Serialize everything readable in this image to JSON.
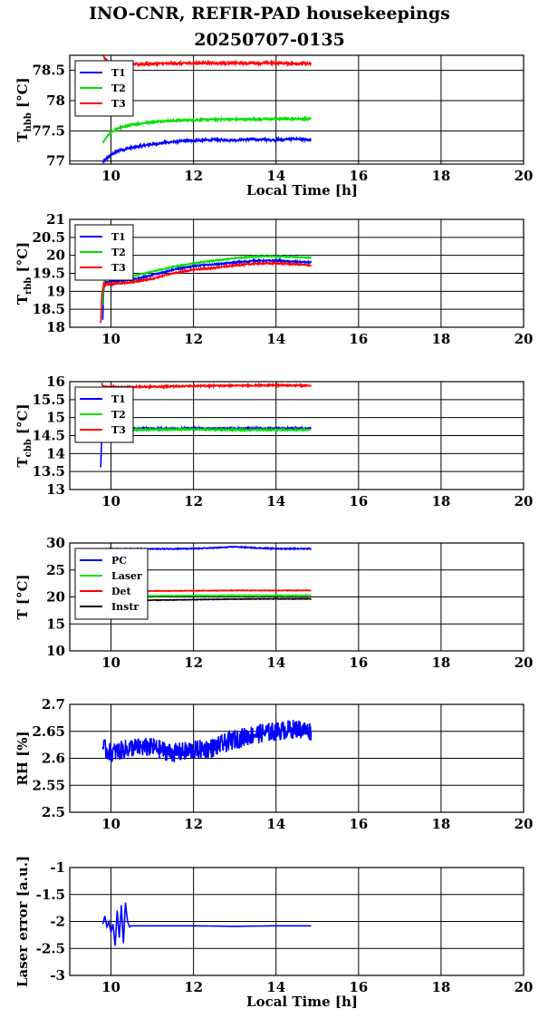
{
  "title_line1": "INO-CNR, REFIR-PAD housekeepings",
  "title_line2": "20250707-0135",
  "colors": {
    "blue": "#0000ff",
    "green": "#00e000",
    "red": "#ff0000",
    "black": "#000000"
  },
  "chart_data": [
    {
      "type": "line",
      "ylabel": "T_hbb [°C]",
      "ylabel_main": "T",
      "ylabel_sub": "hbb",
      "ylabel_unit": "[°C]",
      "xlabel": "Local Time [h]",
      "xlim": [
        9,
        20
      ],
      "ylim": [
        76.95,
        78.75
      ],
      "xticks": [
        10,
        12,
        14,
        16,
        18,
        20
      ],
      "yticks": [
        77,
        77.5,
        78,
        78.5
      ],
      "ytick_labels": [
        "77",
        "77.5",
        "78",
        "78.5"
      ],
      "grid": true,
      "legend": "top-left",
      "series": [
        {
          "name": "T1",
          "color": "#0000ff",
          "noise": 0.02,
          "x": [
            9.8,
            9.9,
            10.0,
            10.2,
            10.5,
            11.0,
            11.5,
            12.0,
            12.5,
            13.0,
            13.5,
            14.0,
            14.5,
            14.85
          ],
          "y": [
            76.98,
            77.05,
            77.1,
            77.18,
            77.22,
            77.28,
            77.32,
            77.34,
            77.35,
            77.35,
            77.36,
            77.35,
            77.37,
            77.34
          ]
        },
        {
          "name": "T2",
          "color": "#00e000",
          "noise": 0.015,
          "x": [
            9.8,
            9.9,
            10.0,
            10.2,
            10.5,
            11.0,
            11.5,
            12.0,
            12.5,
            13.0,
            13.5,
            14.0,
            14.5,
            14.85
          ],
          "y": [
            77.3,
            77.4,
            77.48,
            77.55,
            77.6,
            77.65,
            77.67,
            77.68,
            77.69,
            77.69,
            77.69,
            77.7,
            77.7,
            77.7
          ]
        },
        {
          "name": "T3",
          "color": "#ff0000",
          "noise": 0.02,
          "x": [
            9.8,
            9.85,
            9.9,
            10.0,
            10.5,
            11.0,
            12.0,
            13.0,
            14.0,
            14.85
          ],
          "y": [
            78.75,
            78.7,
            78.65,
            78.6,
            78.6,
            78.61,
            78.62,
            78.62,
            78.62,
            78.61
          ]
        }
      ]
    },
    {
      "type": "line",
      "ylabel": "T_rbb [°C]",
      "ylabel_main": "T",
      "ylabel_sub": "rbb",
      "ylabel_unit": "[°C]",
      "xlabel": "",
      "xlim": [
        9,
        20
      ],
      "ylim": [
        18,
        21
      ],
      "xticks": [
        10,
        12,
        14,
        16,
        18,
        20
      ],
      "yticks": [
        18,
        18.5,
        19,
        19.5,
        20,
        20.5,
        21
      ],
      "ytick_labels": [
        "18",
        "18.5",
        "19",
        "19.5",
        "20",
        "20.5",
        "21"
      ],
      "grid": true,
      "legend": "top-left",
      "series": [
        {
          "name": "T1",
          "color": "#0000ff",
          "noise": 0.02,
          "x": [
            9.8,
            9.82,
            9.85,
            10.0,
            10.5,
            11.0,
            11.5,
            12.0,
            12.5,
            13.0,
            13.5,
            14.0,
            14.5,
            14.85
          ],
          "y": [
            18.2,
            19.0,
            19.25,
            19.27,
            19.32,
            19.45,
            19.6,
            19.7,
            19.75,
            19.8,
            19.85,
            19.85,
            19.82,
            19.8
          ]
        },
        {
          "name": "T2",
          "color": "#00e000",
          "noise": 0.015,
          "x": [
            9.8,
            9.82,
            9.85,
            10.0,
            10.5,
            11.0,
            11.5,
            12.0,
            12.5,
            13.0,
            13.5,
            14.0,
            14.5,
            14.85
          ],
          "y": [
            18.6,
            19.2,
            19.32,
            19.35,
            19.42,
            19.55,
            19.68,
            19.78,
            19.85,
            19.92,
            19.97,
            19.97,
            19.95,
            19.93
          ]
        },
        {
          "name": "T3",
          "color": "#ff0000",
          "noise": 0.02,
          "x": [
            9.75,
            9.78,
            9.82,
            9.85,
            10.0,
            10.5,
            11.0,
            11.5,
            12.0,
            12.5,
            13.0,
            13.5,
            14.0,
            14.5,
            14.85
          ],
          "y": [
            18.1,
            18.9,
            19.2,
            19.18,
            19.2,
            19.25,
            19.35,
            19.5,
            19.6,
            19.65,
            19.72,
            19.77,
            19.78,
            19.75,
            19.72
          ]
        }
      ]
    },
    {
      "type": "line",
      "ylabel": "T_cbb [°C]",
      "ylabel_main": "T",
      "ylabel_sub": "cbb",
      "ylabel_unit": "[°C]",
      "xlabel": "",
      "xlim": [
        9,
        20
      ],
      "ylim": [
        13,
        16
      ],
      "xticks": [
        10,
        12,
        14,
        16,
        18,
        20
      ],
      "yticks": [
        13,
        13.5,
        14,
        14.5,
        15,
        15.5,
        16
      ],
      "ytick_labels": [
        "13",
        "13.5",
        "14",
        "14.5",
        "15",
        "15.5",
        "16"
      ],
      "grid": true,
      "legend": "top-left",
      "series": [
        {
          "name": "T1",
          "color": "#0000ff",
          "noise": 0.02,
          "x": [
            9.75,
            9.77,
            9.8,
            9.85,
            10.0,
            11.0,
            12.0,
            13.0,
            14.0,
            14.85
          ],
          "y": [
            13.6,
            14.3,
            14.65,
            14.7,
            14.7,
            14.7,
            14.7,
            14.7,
            14.7,
            14.7
          ]
        },
        {
          "name": "T2",
          "color": "#00e000",
          "noise": 0.02,
          "x": [
            9.8,
            9.85,
            10.0,
            11.0,
            12.0,
            13.0,
            14.0,
            14.85
          ],
          "y": [
            14.6,
            14.65,
            14.66,
            14.67,
            14.67,
            14.66,
            14.66,
            14.66
          ]
        },
        {
          "name": "T3",
          "color": "#ff0000",
          "noise": 0.02,
          "x": [
            9.78,
            9.8,
            9.85,
            10.0,
            11.0,
            12.0,
            13.0,
            14.0,
            14.85
          ],
          "y": [
            15.95,
            15.88,
            15.85,
            15.85,
            15.86,
            15.88,
            15.89,
            15.9,
            15.89
          ]
        }
      ]
    },
    {
      "type": "line",
      "ylabel": "T [°C]",
      "ylabel_main": "T [°C]",
      "ylabel_sub": "",
      "ylabel_unit": "",
      "xlabel": "",
      "xlim": [
        9,
        20
      ],
      "ylim": [
        10,
        30
      ],
      "xticks": [
        10,
        12,
        14,
        16,
        18,
        20
      ],
      "yticks": [
        10,
        15,
        20,
        25,
        30
      ],
      "ytick_labels": [
        "10",
        "15",
        "20",
        "25",
        "30"
      ],
      "grid": true,
      "legend": "top-left",
      "series": [
        {
          "name": "PC",
          "color": "#0000ff",
          "noise": 0.08,
          "x": [
            9.8,
            10.5,
            11.0,
            12.0,
            12.5,
            13.0,
            13.5,
            14.0,
            14.85
          ],
          "y": [
            28.9,
            28.9,
            28.9,
            28.95,
            29.1,
            29.3,
            29.1,
            28.95,
            28.95
          ]
        },
        {
          "name": "Laser",
          "color": "#00e000",
          "noise": 0.05,
          "x": [
            9.8,
            10.5,
            11.0,
            12.0,
            13.0,
            14.0,
            14.85
          ],
          "y": [
            20.1,
            20.15,
            20.2,
            20.25,
            20.3,
            20.3,
            20.3
          ]
        },
        {
          "name": "Det",
          "color": "#ff0000",
          "noise": 0.05,
          "x": [
            9.8,
            10.5,
            11.0,
            12.0,
            13.0,
            14.0,
            14.85
          ],
          "y": [
            21.0,
            21.05,
            21.1,
            21.15,
            21.2,
            21.2,
            21.2
          ]
        },
        {
          "name": "Instr",
          "color": "#000000",
          "noise": 0.05,
          "x": [
            9.8,
            10.5,
            11.0,
            12.0,
            13.0,
            14.0,
            14.85
          ],
          "y": [
            19.2,
            19.3,
            19.4,
            19.5,
            19.6,
            19.65,
            19.65
          ]
        }
      ]
    },
    {
      "type": "line",
      "ylabel": "RH [%]",
      "ylabel_main": "RH [%]",
      "ylabel_sub": "",
      "ylabel_unit": "",
      "xlabel": "",
      "xlim": [
        9,
        20
      ],
      "ylim": [
        2.5,
        2.7
      ],
      "xticks": [
        10,
        12,
        14,
        16,
        18,
        20
      ],
      "yticks": [
        2.5,
        2.55,
        2.6,
        2.65,
        2.7
      ],
      "ytick_labels": [
        "2.5",
        "2.55",
        "2.6",
        "2.65",
        "2.7"
      ],
      "grid": true,
      "legend": "none",
      "series": [
        {
          "name": "",
          "color": "#0000ff",
          "noise": 0.018,
          "x": [
            9.8,
            10.0,
            10.5,
            11.0,
            11.5,
            12.0,
            12.5,
            13.0,
            13.5,
            14.0,
            14.5,
            14.85
          ],
          "y": [
            2.62,
            2.61,
            2.62,
            2.62,
            2.61,
            2.615,
            2.62,
            2.635,
            2.645,
            2.65,
            2.655,
            2.65
          ]
        }
      ]
    },
    {
      "type": "line",
      "ylabel": "Laser error [a.u.]",
      "ylabel_main": "Laser error [a.u.]",
      "ylabel_sub": "",
      "ylabel_unit": "",
      "xlabel": "Local Time [h]",
      "xlim": [
        9,
        20
      ],
      "ylim": [
        -3,
        -1
      ],
      "xticks": [
        10,
        12,
        14,
        16,
        18,
        20
      ],
      "yticks": [
        -3,
        -2.5,
        -2,
        -1.5,
        -1
      ],
      "ytick_labels": [
        "-3",
        "-2.5",
        "-2",
        "-1.5",
        "-1"
      ],
      "grid": true,
      "legend": "none",
      "series": [
        {
          "name": "",
          "color": "#0000ff",
          "noise": 0,
          "x": [
            9.8,
            9.85,
            9.9,
            9.95,
            10.0,
            10.05,
            10.1,
            10.15,
            10.2,
            10.25,
            10.3,
            10.35,
            10.4,
            10.45,
            10.5,
            11.0,
            12.0,
            13.0,
            14.0,
            14.85
          ],
          "y": [
            -2.05,
            -1.9,
            -2.1,
            -2.0,
            -2.2,
            -2.05,
            -2.45,
            -1.8,
            -2.3,
            -1.7,
            -2.4,
            -1.65,
            -2.0,
            -2.1,
            -2.08,
            -2.08,
            -2.08,
            -2.09,
            -2.08,
            -2.08
          ]
        }
      ]
    }
  ]
}
